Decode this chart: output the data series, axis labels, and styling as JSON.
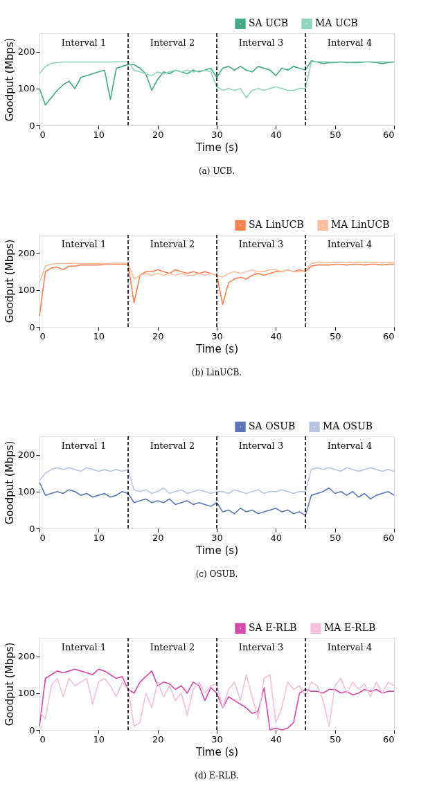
{
  "chart_data": [
    {
      "type": "line",
      "title": "(a) UCB.",
      "xlabel": "Time (s)",
      "ylabel": "Goodput (Mbps)",
      "xlim": [
        0,
        60
      ],
      "ylim": [
        0,
        250
      ],
      "xticks": [
        0,
        10,
        20,
        30,
        40,
        50,
        60
      ],
      "yticks": [
        0,
        100,
        200
      ],
      "grid": false,
      "legend": "top right",
      "x": [
        0,
        1,
        2,
        3,
        4,
        5,
        6,
        7,
        8,
        9,
        10,
        11,
        12,
        13,
        14,
        15,
        16,
        17,
        18,
        19,
        20,
        21,
        22,
        23,
        24,
        25,
        26,
        27,
        28,
        29,
        30,
        31,
        32,
        33,
        34,
        35,
        36,
        37,
        38,
        39,
        40,
        41,
        42,
        43,
        44,
        45,
        46,
        47,
        48,
        49,
        50,
        51,
        52,
        53,
        54,
        55,
        56,
        57,
        58,
        59,
        60
      ],
      "series": [
        {
          "name": "SA UCB",
          "color": "#44a985",
          "values": [
            100,
            55,
            75,
            95,
            110,
            120,
            100,
            130,
            135,
            140,
            145,
            150,
            70,
            155,
            160,
            165,
            165,
            155,
            140,
            95,
            125,
            145,
            140,
            150,
            145,
            140,
            150,
            145,
            150,
            155,
            130,
            155,
            160,
            150,
            160,
            150,
            145,
            160,
            155,
            150,
            135,
            155,
            150,
            160,
            155,
            150,
            175,
            172,
            168,
            170,
            170,
            172,
            170,
            170,
            170,
            172,
            172,
            170,
            168,
            170,
            172
          ]
        },
        {
          "name": "MA UCB",
          "color": "#91d4bb",
          "values": [
            140,
            160,
            168,
            170,
            172,
            172,
            172,
            172,
            172,
            172,
            172,
            172,
            172,
            173,
            173,
            173,
            150,
            145,
            140,
            135,
            145,
            140,
            145,
            150,
            145,
            150,
            145,
            148,
            150,
            145,
            105,
            95,
            100,
            95,
            100,
            75,
            95,
            100,
            95,
            100,
            105,
            100,
            95,
            95,
            100,
            100,
            172,
            173,
            173,
            172,
            172,
            173,
            172,
            172,
            173,
            172,
            173,
            172,
            173,
            172,
            173
          ]
        }
      ],
      "ref_lines": [
        {
          "axis": "x",
          "value": 15,
          "color": "#000000",
          "line_style": "dashed"
        },
        {
          "axis": "x",
          "value": 30,
          "color": "#000000",
          "line_style": "dashed"
        },
        {
          "axis": "x",
          "value": 45,
          "color": "#000000",
          "line_style": "dashed"
        }
      ],
      "annotations": [
        "Interval 1",
        "Interval 2",
        "Interval 3",
        "Interval 4"
      ]
    },
    {
      "type": "line",
      "title": "(b) LinUCB.",
      "xlabel": "Time (s)",
      "ylabel": "Goodput (Mbps)",
      "xlim": [
        0,
        60
      ],
      "ylim": [
        0,
        250
      ],
      "xticks": [
        0,
        10,
        20,
        30,
        40,
        50,
        60
      ],
      "yticks": [
        0,
        100,
        200
      ],
      "grid": false,
      "legend": "top right",
      "x": [
        0,
        1,
        2,
        3,
        4,
        5,
        6,
        7,
        8,
        9,
        10,
        11,
        12,
        13,
        14,
        15,
        16,
        17,
        18,
        19,
        20,
        21,
        22,
        23,
        24,
        25,
        26,
        27,
        28,
        29,
        30,
        31,
        32,
        33,
        34,
        35,
        36,
        37,
        38,
        39,
        40,
        41,
        42,
        43,
        44,
        45,
        46,
        47,
        48,
        49,
        50,
        51,
        52,
        53,
        54,
        55,
        56,
        57,
        58,
        59,
        60
      ],
      "series": [
        {
          "name": "SA LinUCB",
          "color": "#fc8150",
          "values": [
            30,
            150,
            160,
            162,
            155,
            165,
            165,
            168,
            168,
            168,
            168,
            170,
            170,
            170,
            170,
            170,
            65,
            140,
            150,
            150,
            155,
            150,
            145,
            155,
            150,
            145,
            150,
            145,
            150,
            145,
            140,
            60,
            120,
            130,
            135,
            130,
            140,
            145,
            140,
            145,
            150,
            150,
            155,
            150,
            155,
            150,
            165,
            168,
            168,
            168,
            170,
            170,
            168,
            170,
            170,
            168,
            170,
            170,
            168,
            170,
            170
          ]
        },
        {
          "name": "MA LinUCB",
          "color": "#fdbfa0",
          "values": [
            120,
            165,
            170,
            172,
            172,
            172,
            172,
            172,
            172,
            172,
            172,
            172,
            172,
            173,
            173,
            173,
            130,
            140,
            145,
            140,
            145,
            140,
            145,
            140,
            145,
            140,
            140,
            145,
            140,
            145,
            140,
            135,
            145,
            150,
            145,
            150,
            155,
            150,
            150,
            155,
            155,
            150,
            155,
            150,
            150,
            155,
            172,
            175,
            175,
            175,
            175,
            175,
            175,
            175,
            175,
            175,
            175,
            175,
            175,
            175,
            175
          ]
        }
      ],
      "ref_lines": [
        {
          "axis": "x",
          "value": 15,
          "color": "#000000",
          "line_style": "dashed"
        },
        {
          "axis": "x",
          "value": 30,
          "color": "#000000",
          "line_style": "dashed"
        },
        {
          "axis": "x",
          "value": 45,
          "color": "#000000",
          "line_style": "dashed"
        }
      ],
      "annotations": [
        "Interval 1",
        "Interval 2",
        "Interval 3",
        "Interval 4"
      ]
    },
    {
      "type": "line",
      "title": "(c) OSUB.",
      "xlabel": "Time (s)",
      "ylabel": "Goodput (Mbps)",
      "xlim": [
        0,
        60
      ],
      "ylim": [
        0,
        250
      ],
      "xticks": [
        0,
        10,
        20,
        30,
        40,
        50,
        60
      ],
      "yticks": [
        0,
        100,
        200
      ],
      "grid": false,
      "legend": "top right",
      "x": [
        0,
        1,
        2,
        3,
        4,
        5,
        6,
        7,
        8,
        9,
        10,
        11,
        12,
        13,
        14,
        15,
        16,
        17,
        18,
        19,
        20,
        21,
        22,
        23,
        24,
        25,
        26,
        27,
        28,
        29,
        30,
        31,
        32,
        33,
        34,
        35,
        36,
        37,
        38,
        39,
        40,
        41,
        42,
        43,
        44,
        45,
        46,
        47,
        48,
        49,
        50,
        51,
        52,
        53,
        54,
        55,
        56,
        57,
        58,
        59,
        60
      ],
      "series": [
        {
          "name": "SA OSUB",
          "color": "#5b76b8",
          "values": [
            125,
            90,
            95,
            100,
            95,
            105,
            100,
            90,
            95,
            85,
            90,
            95,
            85,
            90,
            100,
            95,
            70,
            75,
            80,
            70,
            75,
            70,
            80,
            65,
            70,
            75,
            65,
            70,
            65,
            60,
            70,
            45,
            50,
            40,
            55,
            45,
            50,
            40,
            45,
            50,
            55,
            45,
            50,
            40,
            45,
            35,
            90,
            95,
            100,
            110,
            95,
            100,
            90,
            100,
            85,
            95,
            80,
            90,
            95,
            100,
            90
          ]
        },
        {
          "name": "MA OSUB",
          "color": "#b8c6e3",
          "values": [
            130,
            150,
            160,
            165,
            160,
            165,
            160,
            155,
            165,
            160,
            155,
            160,
            155,
            160,
            155,
            160,
            105,
            100,
            105,
            95,
            100,
            110,
            95,
            100,
            105,
            95,
            100,
            105,
            100,
            95,
            100,
            100,
            95,
            105,
            100,
            95,
            100,
            105,
            95,
            100,
            100,
            105,
            100,
            95,
            100,
            100,
            160,
            165,
            160,
            165,
            160,
            155,
            165,
            160,
            155,
            160,
            165,
            160,
            155,
            160,
            155
          ]
        }
      ],
      "ref_lines": [
        {
          "axis": "x",
          "value": 15,
          "color": "#000000",
          "line_style": "dashed"
        },
        {
          "axis": "x",
          "value": 30,
          "color": "#000000",
          "line_style": "dashed"
        },
        {
          "axis": "x",
          "value": 45,
          "color": "#000000",
          "line_style": "dashed"
        }
      ],
      "annotations": [
        "Interval 1",
        "Interval 2",
        "Interval 3",
        "Interval 4"
      ]
    },
    {
      "type": "line",
      "title": "(d) E-RLB.",
      "xlabel": "Time (s)",
      "ylabel": "Goodput (Mbps)",
      "xlim": [
        0,
        60
      ],
      "ylim": [
        0,
        250
      ],
      "xticks": [
        0,
        10,
        20,
        30,
        40,
        50,
        60
      ],
      "yticks": [
        0,
        100,
        200
      ],
      "grid": false,
      "legend": "top right",
      "x": [
        0,
        1,
        2,
        3,
        4,
        5,
        6,
        7,
        8,
        9,
        10,
        11,
        12,
        13,
        14,
        15,
        16,
        17,
        18,
        19,
        20,
        21,
        22,
        23,
        24,
        25,
        26,
        27,
        28,
        29,
        30,
        31,
        32,
        33,
        34,
        35,
        36,
        37,
        38,
        39,
        40,
        41,
        42,
        43,
        44,
        45,
        46,
        47,
        48,
        49,
        50,
        51,
        52,
        53,
        54,
        55,
        56,
        57,
        58,
        59,
        60
      ],
      "series": [
        {
          "name": "SA E-RLB",
          "color": "#d849a4",
          "values": [
            10,
            140,
            150,
            160,
            155,
            160,
            165,
            160,
            155,
            150,
            165,
            160,
            150,
            140,
            145,
            110,
            100,
            130,
            145,
            160,
            120,
            130,
            125,
            110,
            120,
            100,
            130,
            120,
            80,
            115,
            100,
            60,
            90,
            80,
            70,
            60,
            45,
            50,
            115,
            0,
            5,
            0,
            5,
            20,
            100,
            110,
            105,
            105,
            100,
            110,
            110,
            100,
            105,
            95,
            100,
            110,
            105,
            110,
            100,
            105,
            105
          ]
        },
        {
          "name": "MA E-RLB",
          "color": "#f2c0dd",
          "values": [
            50,
            30,
            120,
            140,
            90,
            140,
            120,
            130,
            140,
            70,
            130,
            140,
            120,
            90,
            130,
            110,
            10,
            20,
            100,
            60,
            130,
            90,
            120,
            80,
            100,
            40,
            110,
            130,
            100,
            120,
            125,
            60,
            110,
            130,
            80,
            150,
            90,
            30,
            140,
            150,
            20,
            60,
            130,
            110,
            120,
            90,
            130,
            120,
            80,
            10,
            120,
            140,
            100,
            130,
            110,
            125,
            90,
            130,
            100,
            130,
            120
          ]
        }
      ],
      "ref_lines": [
        {
          "axis": "x",
          "value": 15,
          "color": "#000000",
          "line_style": "dashed"
        },
        {
          "axis": "x",
          "value": 30,
          "color": "#000000",
          "line_style": "dashed"
        },
        {
          "axis": "x",
          "value": 45,
          "color": "#000000",
          "line_style": "dashed"
        }
      ],
      "annotations": [
        "Interval 1",
        "Interval 2",
        "Interval 3",
        "Interval 4"
      ]
    }
  ]
}
